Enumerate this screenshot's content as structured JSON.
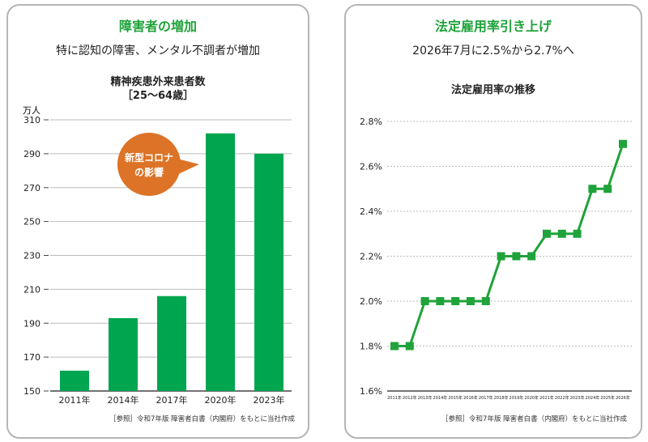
{
  "left": {
    "heading": "障害者の増加",
    "subheading": "特に認知の障害、メンタル不調者が増加",
    "source": "［参照］令和7年版 障害者白書（内閣府）をもとに当社作成"
  },
  "right": {
    "heading": "法定雇用率引き上げ",
    "subheading": "2026年7月に2.5%から2.7%へ",
    "source": "［参照］令和7年版 障害者白書（内閣府）をもとに当社作成"
  },
  "colors": {
    "green": "#00a550",
    "line": "#1fa33a",
    "callout": "#dd7326",
    "heading": "#1fa33a"
  },
  "chart_data": [
    {
      "type": "bar",
      "title": "精神疾患外来患者数",
      "subtitle": "［25～64歳］",
      "ylabel": "万人",
      "categories": [
        "2011年",
        "2014年",
        "2017年",
        "2020年",
        "2023年"
      ],
      "values": [
        162,
        193,
        206,
        302,
        290
      ],
      "ylim": [
        150,
        310
      ],
      "yticks": [
        150,
        170,
        190,
        210,
        230,
        250,
        270,
        290,
        310
      ],
      "grid": true,
      "annotation": {
        "text": [
          "新型コロナ",
          "の影響"
        ],
        "target": "2020年"
      }
    },
    {
      "type": "line",
      "title": "法定雇用率の推移",
      "categories": [
        "2011年",
        "2012年",
        "2013年",
        "2014年",
        "2015年",
        "2016年",
        "2017年",
        "2018年",
        "2019年",
        "2020年",
        "2021年",
        "2022年",
        "2023年",
        "2024年",
        "2025年",
        "2026年"
      ],
      "values": [
        1.8,
        1.8,
        2.0,
        2.0,
        2.0,
        2.0,
        2.0,
        2.2,
        2.2,
        2.2,
        2.3,
        2.3,
        2.3,
        2.5,
        2.5,
        2.7
      ],
      "ylim": [
        1.6,
        2.8
      ],
      "yticks": [
        "1.6%",
        "1.8%",
        "2.0%",
        "2.2%",
        "2.4%",
        "2.6%",
        "2.8%"
      ],
      "grid": true
    }
  ]
}
